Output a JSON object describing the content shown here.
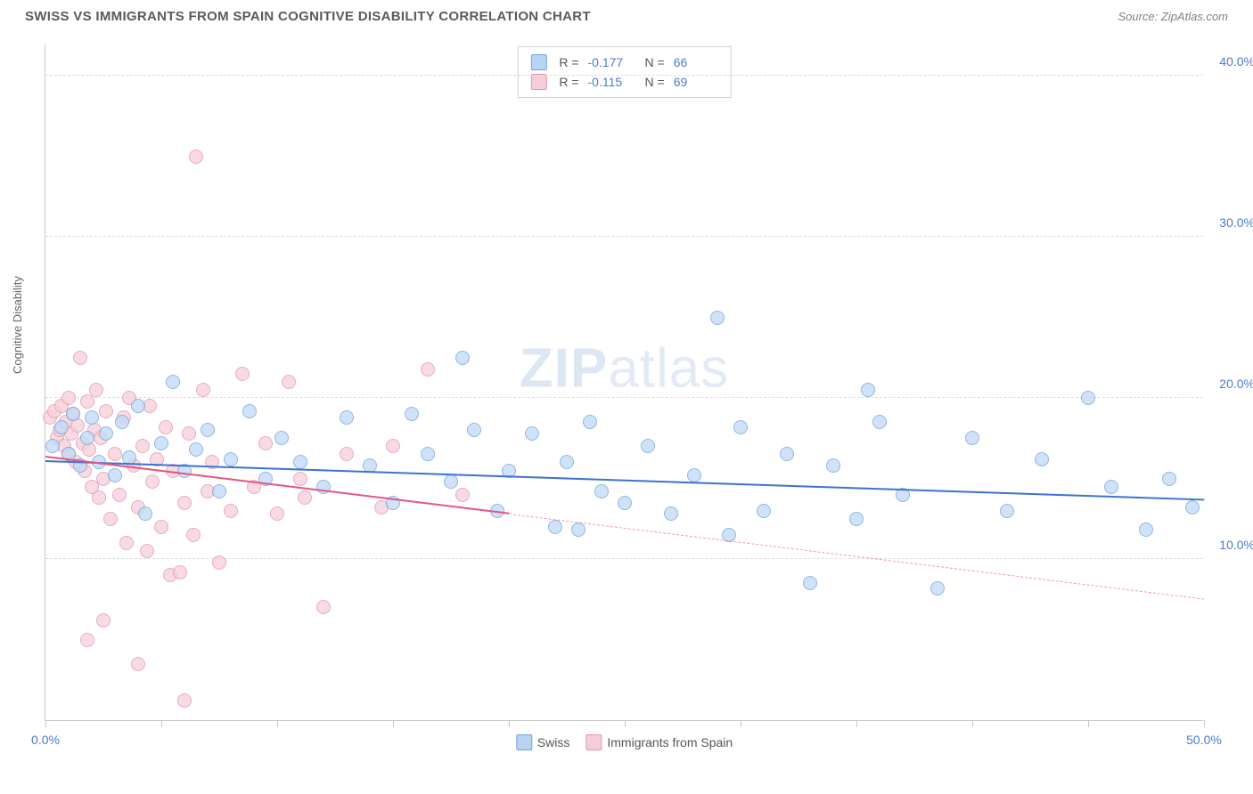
{
  "title": "SWISS VS IMMIGRANTS FROM SPAIN COGNITIVE DISABILITY CORRELATION CHART",
  "source": "Source: ZipAtlas.com",
  "watermark_a": "ZIP",
  "watermark_b": "atlas",
  "y_axis_label": "Cognitive Disability",
  "chart": {
    "type": "scatter",
    "xlim": [
      0,
      50
    ],
    "ylim": [
      0,
      42
    ],
    "x_ticks": [
      0,
      5,
      10,
      15,
      20,
      25,
      30,
      35,
      40,
      45,
      50
    ],
    "x_tick_labels": {
      "0": "0.0%",
      "50": "50.0%"
    },
    "y_ticks": [
      10,
      20,
      30,
      40
    ],
    "y_tick_labels": {
      "10": "10.0%",
      "20": "20.0%",
      "30": "30.0%",
      "40": "40.0%"
    },
    "background_color": "#ffffff",
    "grid_color": "#dcdcdc",
    "axis_color": "#c8c8c8",
    "tick_label_color": "#4a7bd0",
    "marker_radius": 8,
    "marker_stroke_width": 1.2,
    "series": [
      {
        "name": "Swiss",
        "fill": "#c3daf5",
        "stroke": "#6fa3e0",
        "swatch_fill": "#b9d3f2",
        "swatch_stroke": "#6fa3e0",
        "R": "-0.177",
        "N": "66",
        "trend": {
          "x1": 0,
          "y1": 16.0,
          "x2": 50,
          "y2": 13.6,
          "color": "#3b72d4",
          "width": 2.4,
          "solid_to_x": 50
        },
        "points": [
          [
            0.3,
            17.0
          ],
          [
            0.7,
            18.2
          ],
          [
            1.0,
            16.5
          ],
          [
            1.2,
            19.0
          ],
          [
            1.5,
            15.8
          ],
          [
            1.8,
            17.5
          ],
          [
            2.0,
            18.8
          ],
          [
            2.3,
            16.0
          ],
          [
            2.6,
            17.8
          ],
          [
            3.0,
            15.2
          ],
          [
            3.3,
            18.5
          ],
          [
            3.6,
            16.3
          ],
          [
            4.0,
            19.5
          ],
          [
            4.3,
            12.8
          ],
          [
            5.0,
            17.2
          ],
          [
            5.5,
            21.0
          ],
          [
            6.0,
            15.5
          ],
          [
            6.5,
            16.8
          ],
          [
            7.0,
            18.0
          ],
          [
            7.5,
            14.2
          ],
          [
            8.0,
            16.2
          ],
          [
            8.8,
            19.2
          ],
          [
            9.5,
            15.0
          ],
          [
            10.2,
            17.5
          ],
          [
            11.0,
            16.0
          ],
          [
            12.0,
            14.5
          ],
          [
            13.0,
            18.8
          ],
          [
            14.0,
            15.8
          ],
          [
            15.0,
            13.5
          ],
          [
            15.8,
            19.0
          ],
          [
            16.5,
            16.5
          ],
          [
            17.5,
            14.8
          ],
          [
            18.0,
            22.5
          ],
          [
            18.5,
            18.0
          ],
          [
            19.5,
            13.0
          ],
          [
            20.0,
            15.5
          ],
          [
            21.0,
            17.8
          ],
          [
            22.0,
            12.0
          ],
          [
            22.5,
            16.0
          ],
          [
            23.0,
            11.8
          ],
          [
            23.5,
            18.5
          ],
          [
            24.0,
            14.2
          ],
          [
            25.0,
            13.5
          ],
          [
            26.0,
            17.0
          ],
          [
            27.0,
            12.8
          ],
          [
            28.0,
            15.2
          ],
          [
            29.0,
            25.0
          ],
          [
            29.5,
            11.5
          ],
          [
            30.0,
            18.2
          ],
          [
            31.0,
            13.0
          ],
          [
            32.0,
            16.5
          ],
          [
            33.0,
            8.5
          ],
          [
            34.0,
            15.8
          ],
          [
            35.0,
            12.5
          ],
          [
            35.5,
            20.5
          ],
          [
            36.0,
            18.5
          ],
          [
            37.0,
            14.0
          ],
          [
            38.5,
            8.2
          ],
          [
            40.0,
            17.5
          ],
          [
            41.5,
            13.0
          ],
          [
            43.0,
            16.2
          ],
          [
            45.0,
            20.0
          ],
          [
            46.0,
            14.5
          ],
          [
            47.5,
            11.8
          ],
          [
            48.5,
            15.0
          ],
          [
            49.5,
            13.2
          ]
        ]
      },
      {
        "name": "Immigrants from Spain",
        "fill": "#f6d0da",
        "stroke": "#e694ab",
        "swatch_fill": "#f5cdd8",
        "swatch_stroke": "#e694ab",
        "R": "-0.115",
        "N": "69",
        "trend": {
          "x1": 0,
          "y1": 16.3,
          "x2": 50,
          "y2": 7.5,
          "color": "#e6557e",
          "width": 2.0,
          "solid_to_x": 20
        },
        "points": [
          [
            0.2,
            18.8
          ],
          [
            0.4,
            19.2
          ],
          [
            0.5,
            17.5
          ],
          [
            0.6,
            18.0
          ],
          [
            0.7,
            19.5
          ],
          [
            0.8,
            17.0
          ],
          [
            0.9,
            18.5
          ],
          [
            1.0,
            16.5
          ],
          [
            1.0,
            20.0
          ],
          [
            1.1,
            17.8
          ],
          [
            1.2,
            19.0
          ],
          [
            1.3,
            16.0
          ],
          [
            1.4,
            18.3
          ],
          [
            1.5,
            22.5
          ],
          [
            1.6,
            17.2
          ],
          [
            1.7,
            15.5
          ],
          [
            1.8,
            19.8
          ],
          [
            1.9,
            16.8
          ],
          [
            2.0,
            14.5
          ],
          [
            2.1,
            18.0
          ],
          [
            2.2,
            20.5
          ],
          [
            2.3,
            13.8
          ],
          [
            2.4,
            17.5
          ],
          [
            2.5,
            15.0
          ],
          [
            2.6,
            19.2
          ],
          [
            2.8,
            12.5
          ],
          [
            3.0,
            16.5
          ],
          [
            3.2,
            14.0
          ],
          [
            3.4,
            18.8
          ],
          [
            3.5,
            11.0
          ],
          [
            3.6,
            20.0
          ],
          [
            3.8,
            15.8
          ],
          [
            4.0,
            13.2
          ],
          [
            4.2,
            17.0
          ],
          [
            4.4,
            10.5
          ],
          [
            4.5,
            19.5
          ],
          [
            4.6,
            14.8
          ],
          [
            4.8,
            16.2
          ],
          [
            5.0,
            12.0
          ],
          [
            5.2,
            18.2
          ],
          [
            5.4,
            9.0
          ],
          [
            5.5,
            15.5
          ],
          [
            5.8,
            9.2
          ],
          [
            6.0,
            13.5
          ],
          [
            6.2,
            17.8
          ],
          [
            6.4,
            11.5
          ],
          [
            6.5,
            35.0
          ],
          [
            6.8,
            20.5
          ],
          [
            7.0,
            14.2
          ],
          [
            7.2,
            16.0
          ],
          [
            7.5,
            9.8
          ],
          [
            8.0,
            13.0
          ],
          [
            8.5,
            21.5
          ],
          [
            9.0,
            14.5
          ],
          [
            9.5,
            17.2
          ],
          [
            10.0,
            12.8
          ],
          [
            10.5,
            21.0
          ],
          [
            11.0,
            15.0
          ],
          [
            11.2,
            13.8
          ],
          [
            12.0,
            7.0
          ],
          [
            13.0,
            16.5
          ],
          [
            14.5,
            13.2
          ],
          [
            15.0,
            17.0
          ],
          [
            16.5,
            21.8
          ],
          [
            18.0,
            14.0
          ],
          [
            6.0,
            1.2
          ],
          [
            4.0,
            3.5
          ],
          [
            2.5,
            6.2
          ],
          [
            1.8,
            5.0
          ]
        ]
      }
    ]
  },
  "legend_labels": {
    "r": "R =",
    "n": "N ="
  }
}
